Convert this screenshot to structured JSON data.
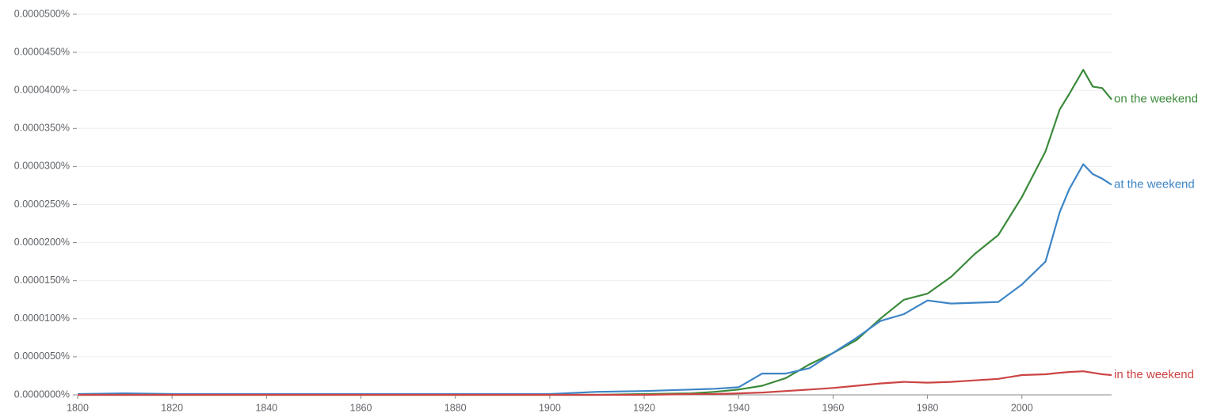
{
  "chart_data": {
    "type": "line",
    "x": [
      1800,
      1810,
      1820,
      1830,
      1840,
      1850,
      1860,
      1870,
      1880,
      1890,
      1900,
      1910,
      1920,
      1930,
      1935,
      1940,
      1945,
      1950,
      1955,
      1960,
      1965,
      1970,
      1975,
      1980,
      1985,
      1990,
      1995,
      2000,
      2005,
      2008,
      2010,
      2013,
      2015,
      2017,
      2019
    ],
    "series": [
      {
        "name": "on the weekend",
        "color": "#3b8a3b",
        "values": [
          0,
          0,
          0,
          0,
          0,
          0,
          0,
          0,
          0,
          0,
          0,
          0,
          1e-07,
          2e-07,
          4e-07,
          7e-07,
          1.2e-06,
          2.2e-06,
          4e-06,
          5.5e-06,
          7.2e-06,
          1e-05,
          1.25e-05,
          1.33e-05,
          1.55e-05,
          1.85e-05,
          2.1e-05,
          2.6e-05,
          3.2e-05,
          3.75e-05,
          3.95e-05,
          4.27e-05,
          4.05e-05,
          4.03e-05,
          3.88e-05
        ]
      },
      {
        "name": "at the weekend",
        "color": "#3d85c6",
        "values": [
          1e-07,
          2e-07,
          1e-07,
          1e-07,
          1e-07,
          1e-07,
          1e-07,
          1e-07,
          1e-07,
          1e-07,
          1e-07,
          4e-07,
          5e-07,
          7e-07,
          8e-07,
          1e-06,
          2.8e-06,
          2.8e-06,
          3.5e-06,
          5.5e-06,
          7.5e-06,
          9.7e-06,
          1.06e-05,
          1.24e-05,
          1.2e-05,
          1.21e-05,
          1.22e-05,
          1.45e-05,
          1.75e-05,
          2.4e-05,
          2.7e-05,
          3.03e-05,
          2.9e-05,
          2.84e-05,
          2.76e-05
        ]
      },
      {
        "name": "in the weekend",
        "color": "#cc4444",
        "values": [
          0,
          0,
          0,
          0,
          0,
          0,
          0,
          0,
          0,
          0,
          0,
          0,
          0,
          1e-07,
          1e-07,
          2e-07,
          3e-07,
          5e-07,
          7e-07,
          9e-07,
          1.2e-06,
          1.5e-06,
          1.7e-06,
          1.6e-06,
          1.7e-06,
          1.9e-06,
          2.1e-06,
          2.6e-06,
          2.7e-06,
          2.9e-06,
          3e-06,
          3.1e-06,
          2.9e-06,
          2.7e-06,
          2.6e-06
        ]
      }
    ],
    "xlim": [
      1800,
      2019
    ],
    "xticks": [
      1800,
      1820,
      1840,
      1860,
      1880,
      1900,
      1920,
      1940,
      1960,
      1980,
      2000
    ],
    "ylim": [
      0,
      5e-05
    ],
    "yticks": [
      {
        "value": 0,
        "label": "0.0000000%"
      },
      {
        "value": 5e-06,
        "label": "0.0000050%"
      },
      {
        "value": 1e-05,
        "label": "0.0000100%"
      },
      {
        "value": 1.5e-05,
        "label": "0.0000150%"
      },
      {
        "value": 2e-05,
        "label": "0.0000200%"
      },
      {
        "value": 2.5e-05,
        "label": "0.0000250%"
      },
      {
        "value": 3e-05,
        "label": "0.0000300%"
      },
      {
        "value": 3.5e-05,
        "label": "0.0000350%"
      },
      {
        "value": 4e-05,
        "label": "0.0000400%"
      },
      {
        "value": 4.5e-05,
        "label": "0.0000450%"
      },
      {
        "value": 5e-05,
        "label": "0.0000500%"
      }
    ],
    "grid": true
  }
}
